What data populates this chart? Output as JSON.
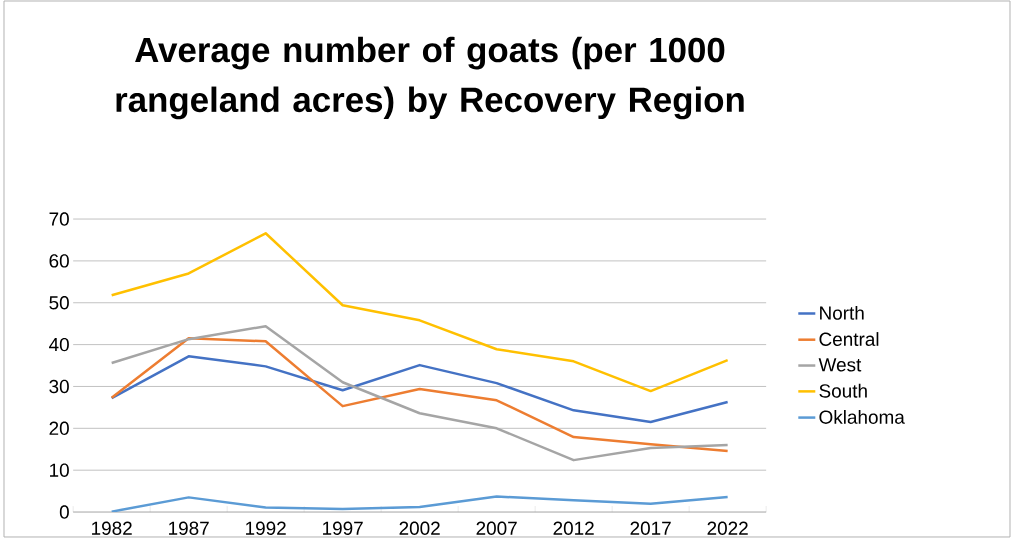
{
  "chart_data": {
    "type": "line",
    "title": "Average number of goats (per 1000 rangeland acres) by Recovery Region",
    "categories": [
      "1982",
      "1987",
      "1992",
      "1997",
      "2002",
      "2007",
      "2012",
      "2017",
      "2022"
    ],
    "series": [
      {
        "name": "North",
        "color": "#4472c4",
        "values": [
          27.2,
          37.2,
          34.8,
          29.1,
          35.1,
          30.8,
          24.3,
          21.5,
          26.3
        ]
      },
      {
        "name": "Central",
        "color": "#ed7d31",
        "values": [
          27.3,
          41.5,
          40.8,
          25.3,
          29.4,
          26.7,
          17.9,
          16.2,
          14.6
        ]
      },
      {
        "name": "West",
        "color": "#a5a5a5",
        "values": [
          35.6,
          41.3,
          44.4,
          31.0,
          23.6,
          20.0,
          12.4,
          15.3,
          16.0
        ]
      },
      {
        "name": "South",
        "color": "#ffc000",
        "values": [
          51.8,
          57.0,
          66.6,
          49.4,
          45.8,
          38.9,
          36.0,
          28.9,
          36.3
        ]
      },
      {
        "name": "Oklahoma",
        "color": "#5b9bd5",
        "values": [
          0.1,
          3.5,
          1.1,
          0.7,
          1.2,
          3.7,
          2.8,
          2.0,
          3.6
        ]
      }
    ],
    "ylim": [
      0,
      70
    ],
    "yticks": [
      0,
      10,
      20,
      30,
      40,
      50,
      60,
      70
    ],
    "grid": "y",
    "legend": "right",
    "marker": "none",
    "line_style": "solid"
  }
}
